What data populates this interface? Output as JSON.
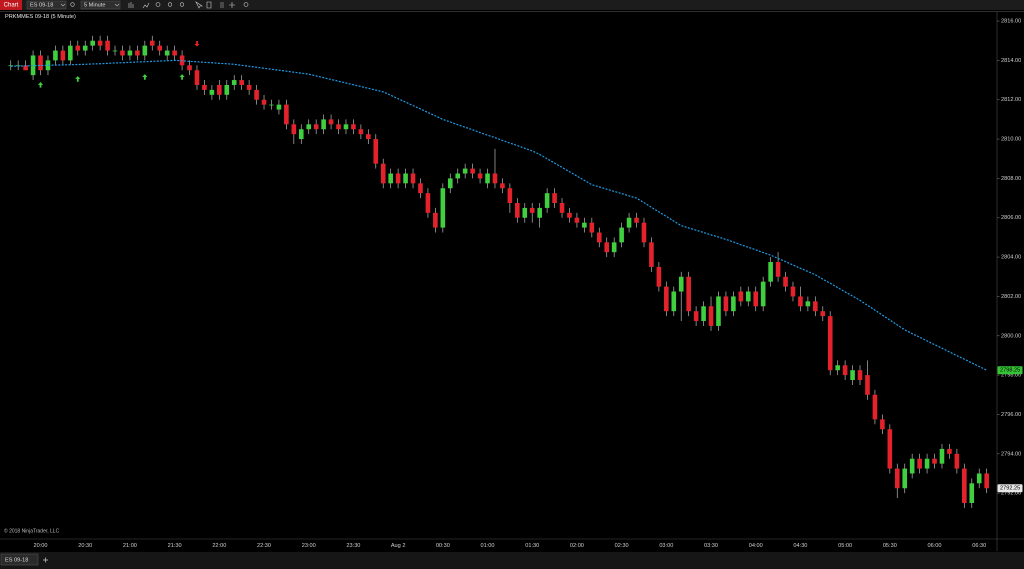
{
  "toolbar": {
    "chart_button": "Chart",
    "instrument": "ES 09-18",
    "interval": "5 Minute"
  },
  "tab": "ES 09-18",
  "copyright": "© 2018 NinjaTrader, LLC",
  "chart_data": {
    "type": "candlestick",
    "title": "PRKMMES 09-18 (5 Minute)",
    "categories": [
      null,
      null,
      null,
      null,
      "20:00",
      null,
      null,
      null,
      null,
      null,
      "20:30",
      null,
      null,
      null,
      null,
      null,
      "21:00",
      null,
      null,
      null,
      null,
      null,
      "21:30",
      null,
      null,
      null,
      null,
      null,
      "22:00",
      null,
      null,
      null,
      null,
      null,
      "22:30",
      null,
      null,
      null,
      null,
      null,
      "23:00",
      null,
      null,
      null,
      null,
      null,
      "23:30",
      null,
      null,
      null,
      null,
      null,
      "Aug 2",
      null,
      null,
      null,
      null,
      null,
      "00:30",
      null,
      null,
      null,
      null,
      null,
      "01:00",
      null,
      null,
      null,
      null,
      null,
      "01:30",
      null,
      null,
      null,
      null,
      null,
      "02:00",
      null,
      null,
      null,
      null,
      null,
      "02:30",
      null,
      null,
      null,
      null,
      null,
      "03:00",
      null,
      null,
      null,
      null,
      null,
      "03:30",
      null,
      null,
      null,
      null,
      null,
      "04:00",
      null,
      null,
      null,
      null,
      null,
      "04:30",
      null,
      null,
      null,
      null,
      null,
      "05:00",
      null,
      null,
      null,
      null,
      null,
      "05:30",
      null,
      null,
      null,
      null,
      null,
      "06:00",
      null,
      null,
      null,
      null,
      null,
      "06:30",
      null
    ],
    "ohlc": [
      [
        2813.75,
        2814,
        2813.5,
        2813.75
      ],
      [
        2813.75,
        2814,
        2813.5,
        2813.75
      ],
      [
        2813.75,
        2814,
        2813.5,
        2813.5
      ],
      [
        2813.25,
        2814.5,
        2813,
        2814.25
      ],
      [
        2814.25,
        2814.5,
        2813.25,
        2813.5
      ],
      [
        2813.5,
        2814.25,
        2813.25,
        2814
      ],
      [
        2814,
        2814.75,
        2813.75,
        2814.5
      ],
      [
        2814.5,
        2814.75,
        2813.75,
        2814
      ],
      [
        2814,
        2815,
        2813.75,
        2814.75
      ],
      [
        2814.75,
        2815,
        2814.25,
        2814.5
      ],
      [
        2814.5,
        2815,
        2814.25,
        2814.75
      ],
      [
        2814.75,
        2815.25,
        2814.5,
        2815
      ],
      [
        2815,
        2815.25,
        2814.5,
        2814.75
      ],
      [
        2815,
        2815.25,
        2814.25,
        2814.5
      ],
      [
        2814.5,
        2814.75,
        2814.25,
        2814.5
      ],
      [
        2814.5,
        2814.75,
        2814,
        2814.25
      ],
      [
        2814.25,
        2814.75,
        2814,
        2814.5
      ],
      [
        2814.5,
        2814.75,
        2814,
        2814.25
      ],
      [
        2814.25,
        2815,
        2814,
        2814.75
      ],
      [
        2815,
        2815.25,
        2814.5,
        2814.75
      ],
      [
        2814.75,
        2815,
        2814.25,
        2814.5
      ],
      [
        2814.25,
        2814.75,
        2814,
        2814.5
      ],
      [
        2814.5,
        2814.75,
        2814,
        2814.25
      ],
      [
        2814.25,
        2814.5,
        2813.5,
        2813.75
      ],
      [
        2813.75,
        2814,
        2813.25,
        2813.5
      ],
      [
        2813.5,
        2813.75,
        2812.5,
        2812.75
      ],
      [
        2812.75,
        2813,
        2812.25,
        2812.5
      ],
      [
        2812.25,
        2812.75,
        2812,
        2812.5
      ],
      [
        2812.75,
        2813,
        2812,
        2812.25
      ],
      [
        2812.25,
        2813,
        2812,
        2812.75
      ],
      [
        2812.75,
        2813.25,
        2812.5,
        2813
      ],
      [
        2813,
        2813.25,
        2812.5,
        2812.75
      ],
      [
        2812.75,
        2813,
        2812.25,
        2812.5
      ],
      [
        2812.5,
        2812.75,
        2811.75,
        2812
      ],
      [
        2812,
        2812.25,
        2811.5,
        2811.75
      ],
      [
        2811.75,
        2812,
        2811.5,
        2811.75
      ],
      [
        2811.5,
        2812,
        2811.25,
        2811.75
      ],
      [
        2811.75,
        2812,
        2810.5,
        2810.75
      ],
      [
        2810.75,
        2811,
        2809.75,
        2810.25
      ],
      [
        2810,
        2810.75,
        2809.75,
        2810.5
      ],
      [
        2810.5,
        2811,
        2810.25,
        2810.75
      ],
      [
        2810.75,
        2811,
        2810.25,
        2810.5
      ],
      [
        2810.5,
        2811.25,
        2810.25,
        2811
      ],
      [
        2811,
        2811.25,
        2810.5,
        2810.75
      ],
      [
        2810.75,
        2811,
        2810.25,
        2810.5
      ],
      [
        2810.5,
        2811,
        2810.25,
        2810.75
      ],
      [
        2810.75,
        2811,
        2810.25,
        2810.5
      ],
      [
        2810.5,
        2810.75,
        2810,
        2810.25
      ],
      [
        2810.25,
        2810.5,
        2809.75,
        2810
      ],
      [
        2810,
        2810.25,
        2808.5,
        2808.75
      ],
      [
        2808.75,
        2809,
        2807.5,
        2807.75
      ],
      [
        2807.75,
        2808.5,
        2807.5,
        2808.25
      ],
      [
        2808.25,
        2808.5,
        2807.5,
        2807.75
      ],
      [
        2807.75,
        2808.5,
        2807.5,
        2808.25
      ],
      [
        2808.25,
        2808.5,
        2807.5,
        2807.75
      ],
      [
        2807.75,
        2808,
        2807,
        2807.25
      ],
      [
        2807.25,
        2807.5,
        2806,
        2806.25
      ],
      [
        2806.25,
        2806.5,
        2805.25,
        2805.5
      ],
      [
        2805.5,
        2807.75,
        2805.25,
        2807.5
      ],
      [
        2807.5,
        2808.25,
        2807.25,
        2808
      ],
      [
        2808,
        2808.5,
        2807.75,
        2808.25
      ],
      [
        2808.25,
        2808.75,
        2808,
        2808.5
      ],
      [
        2808.5,
        2808.75,
        2808,
        2808.25
      ],
      [
        2808.25,
        2808.5,
        2807.75,
        2808
      ],
      [
        2807.75,
        2808.5,
        2807.5,
        2808.25
      ],
      [
        2808.25,
        2809.5,
        2807.5,
        2807.75
      ],
      [
        2807.75,
        2808,
        2807.25,
        2807.5
      ],
      [
        2807.5,
        2807.75,
        2806.25,
        2806.75
      ],
      [
        2806.75,
        2807,
        2805.75,
        2806
      ],
      [
        2806,
        2806.75,
        2805.75,
        2806.5
      ],
      [
        2806.5,
        2806.75,
        2805.75,
        2806.25
      ],
      [
        2806,
        2806.75,
        2805.5,
        2806.5
      ],
      [
        2806.5,
        2807.5,
        2806.25,
        2807.25
      ],
      [
        2807.25,
        2807.5,
        2806.5,
        2806.75
      ],
      [
        2806.75,
        2807,
        2806,
        2806.25
      ],
      [
        2806.25,
        2806.5,
        2805.75,
        2806
      ],
      [
        2806,
        2806.25,
        2805.5,
        2805.75
      ],
      [
        2805.5,
        2806,
        2805.25,
        2805.75
      ],
      [
        2805.75,
        2806,
        2805,
        2805.25
      ],
      [
        2805.25,
        2805.5,
        2804.5,
        2804.75
      ],
      [
        2804.75,
        2805,
        2804,
        2804.25
      ],
      [
        2804.25,
        2805,
        2804,
        2804.75
      ],
      [
        2804.75,
        2805.75,
        2804.5,
        2805.5
      ],
      [
        2805.5,
        2806.25,
        2805.25,
        2806
      ],
      [
        2806,
        2806.25,
        2805.5,
        2805.75
      ],
      [
        2805.75,
        2806,
        2804.5,
        2804.75
      ],
      [
        2804.75,
        2805,
        2803.25,
        2803.5
      ],
      [
        2803.5,
        2803.75,
        2802.25,
        2802.5
      ],
      [
        2802.5,
        2802.75,
        2801,
        2801.25
      ],
      [
        2801.25,
        2802.5,
        2801,
        2802.25
      ],
      [
        2802.25,
        2803.25,
        2800.75,
        2803
      ],
      [
        2803,
        2803.25,
        2801,
        2801.25
      ],
      [
        2801.25,
        2801.5,
        2800.5,
        2800.75
      ],
      [
        2800.75,
        2801.75,
        2800.5,
        2801.5
      ],
      [
        2801.5,
        2802,
        2800.25,
        2800.5
      ],
      [
        2800.5,
        2802.25,
        2800.25,
        2802
      ],
      [
        2802,
        2802.25,
        2801,
        2801.25
      ],
      [
        2801.25,
        2802.25,
        2801,
        2802
      ],
      [
        2802.25,
        2802.5,
        2801.5,
        2801.75
      ],
      [
        2801.75,
        2802.5,
        2801.5,
        2802.25
      ],
      [
        2802.25,
        2802.5,
        2801.25,
        2801.5
      ],
      [
        2801.5,
        2803,
        2801.25,
        2802.75
      ],
      [
        2802.75,
        2804,
        2802.5,
        2803.75
      ],
      [
        2803.75,
        2804.25,
        2802.75,
        2803
      ],
      [
        2803,
        2803.25,
        2802.25,
        2802.5
      ],
      [
        2802.5,
        2802.75,
        2801.75,
        2802
      ],
      [
        2802,
        2802.5,
        2801.25,
        2801.5
      ],
      [
        2801.5,
        2802,
        2801.25,
        2801.75
      ],
      [
        2801.75,
        2802,
        2801,
        2801.25
      ],
      [
        2801.25,
        2801.5,
        2800.75,
        2801
      ],
      [
        2801,
        2801.25,
        2798,
        2798.25
      ],
      [
        2798.25,
        2798.75,
        2798,
        2798.5
      ],
      [
        2798.5,
        2798.75,
        2797.75,
        2798
      ],
      [
        2797.75,
        2798.5,
        2797.5,
        2798.25
      ],
      [
        2798.25,
        2798.5,
        2797.5,
        2797.75
      ],
      [
        2798,
        2798.75,
        2796.75,
        2797
      ],
      [
        2797,
        2797.25,
        2795.5,
        2795.75
      ],
      [
        2795.75,
        2796,
        2795,
        2795.25
      ],
      [
        2795.25,
        2795.5,
        2793,
        2793.25
      ],
      [
        2793.25,
        2793.5,
        2791.75,
        2792.25
      ],
      [
        2792.25,
        2793.5,
        2792,
        2793.25
      ],
      [
        2793,
        2794,
        2792.75,
        2793.75
      ],
      [
        2793.75,
        2794,
        2793,
        2793.25
      ],
      [
        2793.25,
        2794,
        2793,
        2793.75
      ],
      [
        2793.75,
        2794,
        2793.25,
        2793.5
      ],
      [
        2793.5,
        2794.5,
        2793.25,
        2794.25
      ],
      [
        2794.25,
        2794.5,
        2793.75,
        2794
      ],
      [
        2794,
        2794.25,
        2793,
        2793.25
      ],
      [
        2793.25,
        2793.5,
        2791.25,
        2791.5
      ],
      [
        2791.5,
        2792.75,
        2791.25,
        2792.5
      ],
      [
        2792.5,
        2793.25,
        2792.25,
        2793
      ],
      [
        2793,
        2793.25,
        2792,
        2792.25
      ]
    ],
    "up_color": "#3fcf3f",
    "down_color": "#e3222b",
    "wick_color": "#b8b8b8",
    "last_price_color": "#e6e6e6",
    "ma": {
      "color": "#1f9be6",
      "tag_color": "#36c436",
      "values": [
        2813.7,
        2813.71,
        2813.72,
        2813.73,
        2813.74,
        2813.75,
        2813.76,
        2813.77,
        2813.78,
        2813.79,
        2813.8,
        2813.82,
        2813.83,
        2813.85,
        2813.87,
        2813.88,
        2813.9,
        2813.92,
        2813.93,
        2813.95,
        2813.97,
        2813.98,
        2814.0,
        2813.98,
        2813.95,
        2813.93,
        2813.9,
        2813.88,
        2813.85,
        2813.83,
        2813.8,
        2813.75,
        2813.7,
        2813.65,
        2813.6,
        2813.55,
        2813.5,
        2813.45,
        2813.4,
        2813.35,
        2813.3,
        2813.21,
        2813.12,
        2813.03,
        2812.94,
        2812.85,
        2812.76,
        2812.67,
        2812.58,
        2812.49,
        2812.4,
        2812.23,
        2812.05,
        2811.88,
        2811.7,
        2811.53,
        2811.35,
        2811.18,
        2811.0,
        2810.87,
        2810.73,
        2810.6,
        2810.47,
        2810.33,
        2810.2,
        2810.07,
        2809.93,
        2809.8,
        2809.67,
        2809.53,
        2809.4,
        2809.22,
        2809.0,
        2808.78,
        2808.56,
        2808.34,
        2808.12,
        2807.9,
        2807.68,
        2807.57,
        2807.45,
        2807.34,
        2807.23,
        2807.11,
        2807.0,
        2806.77,
        2806.53,
        2806.3,
        2806.07,
        2805.83,
        2805.6,
        2805.48,
        2805.37,
        2805.25,
        2805.13,
        2805.02,
        2804.9,
        2804.77,
        2804.63,
        2804.5,
        2804.37,
        2804.23,
        2804.1,
        2803.93,
        2803.77,
        2803.6,
        2803.43,
        2803.27,
        2803.1,
        2802.88,
        2802.67,
        2802.45,
        2802.23,
        2802.02,
        2801.8,
        2801.55,
        2801.3,
        2801.05,
        2800.8,
        2800.55,
        2800.3,
        2800.11,
        2799.93,
        2799.74,
        2799.55,
        2799.37,
        2799.18,
        2798.99,
        2798.81,
        2798.62,
        2798.44,
        2798.25
      ]
    },
    "signals": {
      "up": {
        "color": "#3fcf3f",
        "x": [
          4,
          9,
          18,
          23
        ],
        "values": [
          2812.9,
          2813.2,
          2813.3,
          2813.3
        ]
      },
      "down": {
        "color": "#e3222b",
        "x": [
          25
        ],
        "values": [
          2814.7
        ]
      }
    },
    "ylim": [
      2789.72,
      2816.46
    ],
    "yticks": [
      {
        "value": 2792,
        "label": "2792.00"
      },
      {
        "value": 2794,
        "label": "2794.00"
      },
      {
        "value": 2796,
        "label": "2796.00"
      },
      {
        "value": 2798,
        "label": "2798.00"
      },
      {
        "value": 2800,
        "label": "2800.00"
      },
      {
        "value": 2802,
        "label": "2802.00"
      },
      {
        "value": 2804,
        "label": "2804.00"
      },
      {
        "value": 2806,
        "label": "2806.00"
      },
      {
        "value": 2808,
        "label": "2808.00"
      },
      {
        "value": 2810,
        "label": "2810.00"
      },
      {
        "value": 2812,
        "label": "2812.00"
      },
      {
        "value": 2814,
        "label": "2814.00"
      },
      {
        "value": 2816,
        "label": "2816.00"
      }
    ],
    "grid": false
  }
}
